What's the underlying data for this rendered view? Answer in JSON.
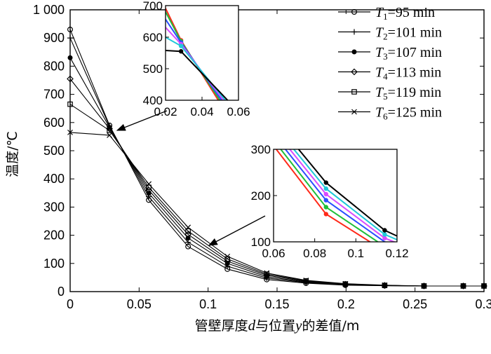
{
  "chart_data": {
    "type": "line",
    "title": "",
    "xlabel_parts": [
      "管壁厚度",
      "d",
      "与位置",
      "y",
      "的差值/m"
    ],
    "ylabel": "温度/℃",
    "xlim": [
      0,
      0.3
    ],
    "ylim": [
      0,
      1000
    ],
    "x_ticks": [
      0,
      0.05,
      0.1,
      0.15,
      0.2,
      0.25,
      0.3
    ],
    "x_tick_labels": [
      "0",
      "0.05",
      "0.1",
      "0.15",
      "0.2",
      "0.25",
      "0.3"
    ],
    "y_ticks": [
      0,
      100,
      200,
      300,
      400,
      500,
      600,
      700,
      800,
      900,
      1000
    ],
    "y_tick_labels": [
      "0",
      "100",
      "200",
      "300",
      "400",
      "500",
      "600",
      "700",
      "800",
      "900",
      "1 000"
    ],
    "legend_position": "top-right",
    "series": [
      {
        "name": "T1=95 min",
        "sym": "T",
        "sub": "1",
        "rest": "=95 min",
        "marker": "circle",
        "color": "#ff2a1a",
        "x": [
          0,
          0.0285,
          0.057,
          0.0855,
          0.114,
          0.1425,
          0.171,
          0.1995,
          0.228,
          0.2565,
          0.285,
          0.3
        ],
        "y": [
          930,
          590,
          325,
          160,
          80,
          43,
          30,
          23,
          21,
          20,
          20,
          20
        ]
      },
      {
        "name": "T2=101 min",
        "sym": "T",
        "sub": "2",
        "rest": "=101 min",
        "marker": "plus",
        "color": "#1fbf3a",
        "x": [
          0,
          0.0285,
          0.057,
          0.0855,
          0.114,
          0.1425,
          0.171,
          0.1995,
          0.228,
          0.2565,
          0.285,
          0.3
        ],
        "y": [
          900,
          587,
          337,
          175,
          90,
          48,
          32,
          24,
          21,
          20,
          20,
          20
        ]
      },
      {
        "name": "T3=107 min",
        "sym": "T",
        "sub": "3",
        "rest": "=107 min",
        "marker": "dot",
        "color": "#2a4fff",
        "x": [
          0,
          0.0285,
          0.057,
          0.0855,
          0.114,
          0.1425,
          0.171,
          0.1995,
          0.228,
          0.2565,
          0.285,
          0.3
        ],
        "y": [
          830,
          583,
          349,
          190,
          100,
          53,
          34,
          25,
          22,
          20,
          20,
          20
        ]
      },
      {
        "name": "T4=113 min",
        "sym": "T",
        "sub": "4",
        "rest": "=113 min",
        "marker": "diamond",
        "color": "#d84cff",
        "x": [
          0,
          0.0285,
          0.057,
          0.0855,
          0.114,
          0.1425,
          0.171,
          0.1995,
          0.228,
          0.2565,
          0.285,
          0.3
        ],
        "y": [
          755,
          578,
          360,
          203,
          108,
          58,
          36,
          26,
          22,
          20,
          20,
          20
        ]
      },
      {
        "name": "T5=119 min",
        "sym": "T",
        "sub": "5",
        "rest": "=119 min",
        "marker": "square",
        "color": "#20c8d8",
        "x": [
          0,
          0.0285,
          0.057,
          0.0855,
          0.114,
          0.1425,
          0.171,
          0.1995,
          0.228,
          0.2565,
          0.285,
          0.3
        ],
        "y": [
          665,
          572,
          370,
          215,
          116,
          62,
          38,
          27,
          22,
          20,
          20,
          20
        ]
      },
      {
        "name": "T6=125 min",
        "sym": "T",
        "sub": "6",
        "rest": "=125 min",
        "marker": "x",
        "color": "#000000",
        "x": [
          0,
          0.0285,
          0.057,
          0.0855,
          0.114,
          0.1425,
          0.171,
          0.1995,
          0.228,
          0.2565,
          0.285,
          0.3
        ],
        "y": [
          565,
          555,
          382,
          228,
          125,
          66,
          40,
          28,
          23,
          20,
          20,
          20
        ]
      }
    ],
    "insets": [
      {
        "name": "inset-top",
        "xlim": [
          0.02,
          0.06
        ],
        "ylim": [
          400,
          700
        ],
        "x_ticks": [
          0.02,
          0.04,
          0.06
        ],
        "x_tick_labels": [
          "0.02",
          "0.04",
          "0.06"
        ],
        "y_ticks": [
          400,
          500,
          600,
          700
        ],
        "y_tick_labels": [
          "400",
          "500",
          "600",
          "700"
        ]
      },
      {
        "name": "inset-bottom",
        "xlim": [
          0.06,
          0.12
        ],
        "ylim": [
          100,
          300
        ],
        "x_ticks": [
          0.06,
          0.08,
          0.1,
          0.12
        ],
        "x_tick_labels": [
          "0.06",
          "0.08",
          "0.1",
          "0.12"
        ],
        "y_ticks": [
          100,
          200,
          300
        ],
        "y_tick_labels": [
          "100",
          "200",
          "300"
        ]
      }
    ]
  }
}
